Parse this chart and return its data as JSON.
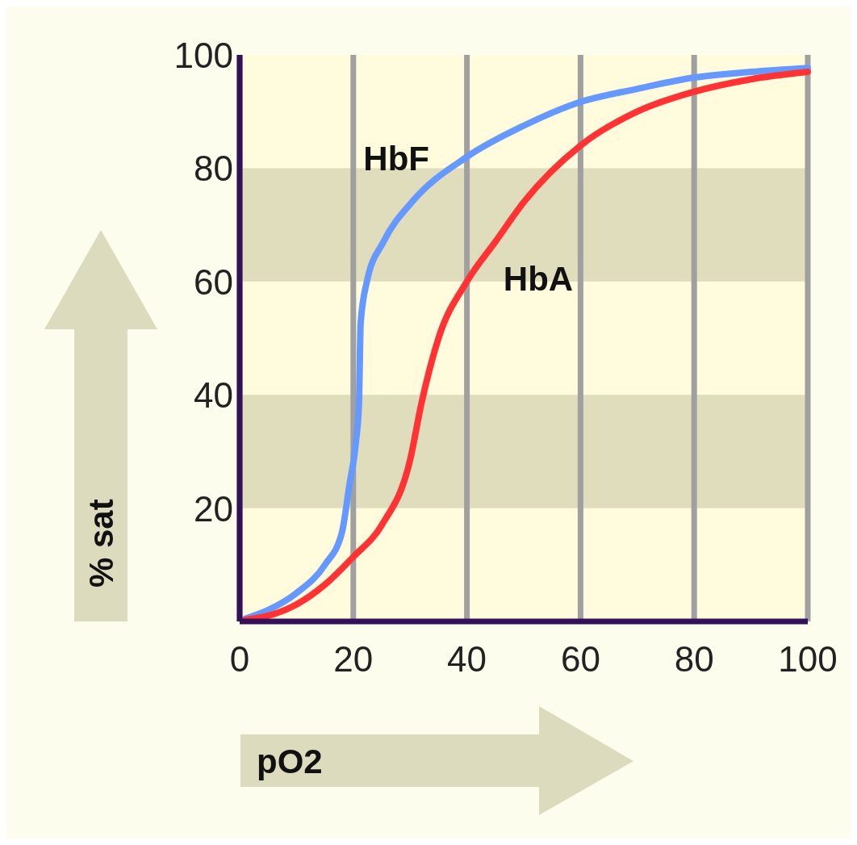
{
  "chart_data": {
    "type": "line",
    "xlabel": "pO2",
    "ylabel": "% sat",
    "xlim": [
      0,
      100
    ],
    "ylim": [
      0,
      100
    ],
    "xticks": [
      0,
      20,
      40,
      60,
      80,
      100
    ],
    "yticks": [
      20,
      40,
      60,
      80,
      100
    ],
    "grid": "x",
    "bands": [
      {
        "axis": "y",
        "from": 20,
        "to": 40,
        "color": "#e0ddbc"
      },
      {
        "axis": "y",
        "from": 60,
        "to": 80,
        "color": "#e0ddbc"
      }
    ],
    "series": [
      {
        "name": "HbF",
        "color": "#6699ff",
        "x": [
          1,
          5,
          10,
          15,
          18,
          19.3,
          20.5,
          21,
          21.3,
          22.4,
          25.3,
          30.3,
          40,
          50,
          60,
          70,
          80,
          90,
          100
        ],
        "values": [
          0.5,
          2,
          5,
          10,
          15.7,
          24,
          32,
          38.5,
          52.7,
          60,
          67,
          74,
          82,
          87.5,
          91.7,
          94,
          96,
          97,
          97.7
        ]
      },
      {
        "name": "HbA",
        "color": "#ff3333",
        "x": [
          1,
          5,
          10,
          15,
          20,
          25,
          30,
          32,
          35,
          40,
          45,
          50,
          60,
          70,
          80,
          90,
          100
        ],
        "values": [
          0.3,
          1,
          3,
          6.5,
          11.4,
          17,
          28.5,
          38.5,
          50,
          60,
          67,
          74,
          84,
          90,
          93.5,
          95.7,
          97
        ]
      }
    ]
  }
}
